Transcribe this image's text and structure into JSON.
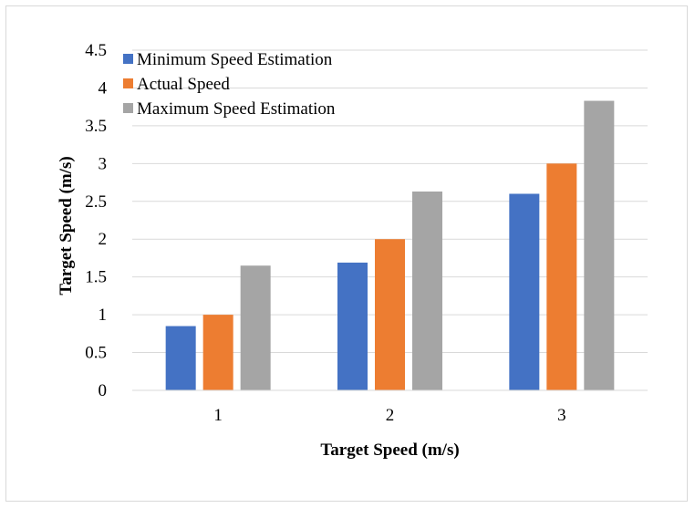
{
  "chart_data": {
    "type": "bar",
    "title": "",
    "xlabel": "Target Speed (m/s)",
    "ylabel": "Target Speed (m/s)",
    "categories": [
      "1",
      "2",
      "3"
    ],
    "ylim": [
      0,
      4.5
    ],
    "ytick_step": 0.5,
    "yticks": [
      "0",
      "0.5",
      "1",
      "1.5",
      "2",
      "2.5",
      "3",
      "3.5",
      "4",
      "4.5"
    ],
    "grid": true,
    "legend_position": "top-left",
    "series": [
      {
        "name": "Minimum Speed Estimation",
        "color": "#4472c4",
        "values": [
          0.85,
          1.69,
          2.6
        ]
      },
      {
        "name": "Actual Speed",
        "color": "#ed7d31",
        "values": [
          1.0,
          2.0,
          3.0
        ]
      },
      {
        "name": "Maximum Speed Estimation",
        "color": "#a5a5a5",
        "values": [
          1.65,
          2.63,
          3.83
        ]
      }
    ]
  }
}
